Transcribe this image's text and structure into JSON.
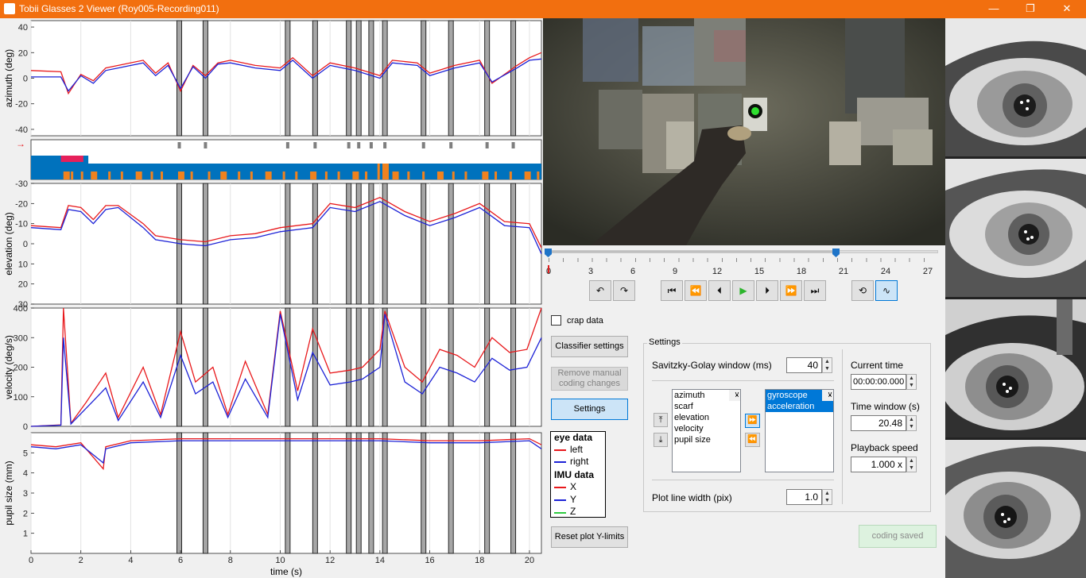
{
  "window": {
    "title": "Tobii Glasses 2 Viewer (Roy005-Recording011)",
    "minimize": "—",
    "maximize": "❐",
    "close": "✕"
  },
  "plots": {
    "azimuth_label": "azimuth (deg)",
    "elevation_label": "elevation (deg)",
    "velocity_label": "velocity (deg/s)",
    "pupil_label": "pupil size (mm)",
    "xlabel": "time (s)",
    "azimuth_ticks": [
      "40",
      "20",
      "0",
      "-20",
      "-40"
    ],
    "elevation_ticks": [
      "-30",
      "-20",
      "-10",
      "0",
      "10",
      "20",
      "30"
    ],
    "velocity_ticks": [
      "400",
      "300",
      "200",
      "100",
      "0"
    ],
    "pupil_ticks": [
      "5",
      "4",
      "3",
      "2",
      "1"
    ],
    "x_ticks": [
      "0",
      "2",
      "4",
      "6",
      "8",
      "10",
      "12",
      "14",
      "16",
      "18",
      "20"
    ],
    "event_markers_s": [
      5.95,
      7.0,
      10.3,
      11.4,
      12.75,
      13.15,
      13.65,
      14.2,
      15.75,
      16.85,
      18.3,
      19.35
    ],
    "arrow": "→"
  },
  "chart_data": [
    {
      "type": "line",
      "ylabel": "azimuth (deg)",
      "ylim": [
        -45,
        45
      ],
      "xlim": [
        0,
        20.48
      ],
      "x": [
        0,
        1.2,
        1.5,
        2.0,
        2.5,
        3.0,
        3.5,
        4.5,
        5.0,
        5.5,
        6.0,
        6.5,
        7.0,
        7.5,
        8.0,
        9.0,
        10.0,
        10.5,
        11.3,
        12.0,
        13.0,
        14.0,
        14.5,
        15.5,
        16.0,
        17.0,
        18.0,
        18.5,
        19.5,
        20.0,
        20.48
      ],
      "series": [
        {
          "name": "left",
          "color": "#e8191c",
          "values": [
            6,
            5,
            -12,
            3,
            -2,
            8,
            10,
            14,
            4,
            12,
            -10,
            10,
            2,
            12,
            14,
            10,
            8,
            16,
            2,
            12,
            8,
            2,
            14,
            12,
            4,
            10,
            14,
            -4,
            10,
            16,
            20
          ]
        },
        {
          "name": "right",
          "color": "#1d22d6",
          "values": [
            1,
            1,
            -10,
            2,
            -4,
            6,
            8,
            12,
            2,
            10,
            -8,
            9,
            0,
            11,
            12,
            8,
            6,
            14,
            0,
            10,
            6,
            0,
            12,
            10,
            2,
            8,
            12,
            -3,
            8,
            14,
            15
          ]
        }
      ]
    },
    {
      "type": "line",
      "ylabel": "elevation (deg)",
      "ylim": [
        -30,
        30
      ],
      "xlim": [
        0,
        20.48
      ],
      "x": [
        0,
        1.2,
        1.5,
        2.0,
        2.5,
        3.0,
        3.5,
        4.5,
        5.0,
        6.0,
        7.0,
        8.0,
        9.0,
        10.0,
        11.3,
        12.0,
        13.0,
        14.0,
        15.0,
        16.0,
        17.0,
        18.0,
        19.0,
        20.0,
        20.48
      ],
      "series": [
        {
          "name": "left",
          "color": "#e8191c",
          "values": [
            -9,
            -8,
            -19,
            -18,
            -12,
            -19,
            -19,
            -10,
            -4,
            -2,
            -1,
            -4,
            -5,
            -8,
            -10,
            -20,
            -18,
            -23,
            -16,
            -11,
            -15,
            -20,
            -11,
            -10,
            2
          ]
        },
        {
          "name": "right",
          "color": "#1d22d6",
          "values": [
            -8,
            -7,
            -17,
            -16,
            -10,
            -17,
            -18,
            -8,
            -2,
            0,
            1,
            -2,
            -3,
            -6,
            -8,
            -18,
            -16,
            -21,
            -14,
            -9,
            -13,
            -18,
            -9,
            -8,
            5
          ]
        }
      ]
    },
    {
      "type": "line",
      "ylabel": "velocity (deg/s)",
      "ylim": [
        0,
        400
      ],
      "xlim": [
        0,
        20.48
      ],
      "x": [
        0,
        1.2,
        1.3,
        1.6,
        2.2,
        3.0,
        3.5,
        4.5,
        5.2,
        6.0,
        6.6,
        7.3,
        7.9,
        8.6,
        9.5,
        10.0,
        10.7,
        11.3,
        12.0,
        12.8,
        13.3,
        14.0,
        14.2,
        15.0,
        15.7,
        16.4,
        17.1,
        17.8,
        18.5,
        19.2,
        19.9,
        20.48
      ],
      "series": [
        {
          "name": "left",
          "color": "#e8191c",
          "values": [
            0,
            5,
            400,
            10,
            80,
            180,
            30,
            200,
            40,
            320,
            150,
            200,
            40,
            220,
            40,
            390,
            120,
            330,
            180,
            190,
            200,
            260,
            390,
            200,
            150,
            260,
            240,
            200,
            300,
            250,
            260,
            400
          ]
        },
        {
          "name": "right",
          "color": "#1d22d6",
          "values": [
            0,
            4,
            300,
            8,
            60,
            130,
            20,
            150,
            30,
            240,
            110,
            150,
            30,
            160,
            30,
            380,
            90,
            250,
            140,
            150,
            160,
            200,
            380,
            150,
            110,
            200,
            180,
            150,
            230,
            190,
            200,
            300
          ]
        }
      ]
    },
    {
      "type": "line",
      "ylabel": "pupil size (mm)",
      "ylim": [
        0,
        6
      ],
      "xlim": [
        0,
        20.48
      ],
      "x": [
        0,
        1.0,
        2.0,
        2.9,
        3.0,
        4.0,
        6.0,
        8.0,
        10.0,
        12.0,
        14.0,
        16.0,
        18.0,
        20.0,
        20.48
      ],
      "series": [
        {
          "name": "left",
          "color": "#e8191c",
          "values": [
            5.4,
            5.3,
            5.5,
            4.2,
            5.3,
            5.6,
            5.7,
            5.7,
            5.7,
            5.7,
            5.7,
            5.6,
            5.6,
            5.7,
            5.4
          ]
        },
        {
          "name": "right",
          "color": "#1d22d6",
          "values": [
            5.3,
            5.2,
            5.4,
            4.5,
            5.2,
            5.5,
            5.6,
            5.6,
            5.6,
            5.6,
            5.6,
            5.5,
            5.5,
            5.6,
            5.2
          ]
        }
      ]
    }
  ],
  "timeline": {
    "ticks": [
      "0",
      "3",
      "6",
      "9",
      "12",
      "15",
      "18",
      "21",
      "24",
      "27"
    ],
    "start_s": 0,
    "window_end_s": 20.48,
    "max_s": 27
  },
  "controls": {
    "crap_data_label": "crap data",
    "classifier_settings": "Classifier settings",
    "remove_manual_line1": "Remove manual",
    "remove_manual_line2": "coding changes",
    "settings_button": "Settings",
    "reset_plot": "Reset plot Y-limits",
    "coding_saved": "coding saved"
  },
  "legend": {
    "eye_header": "eye data",
    "left": "left",
    "right": "right",
    "imu_header": "IMU data",
    "x": "X",
    "y": "Y",
    "z": "Z",
    "colors": {
      "red": "#e8191c",
      "blue": "#1d22d6",
      "green": "#2ecc40"
    }
  },
  "settings_panel": {
    "title": "Settings",
    "sg_label": "Savitzky-Golay window (ms)",
    "sg_value": "40",
    "available": [
      "azimuth",
      "scarf",
      "elevation",
      "velocity",
      "pupil size"
    ],
    "selected": [
      "gyroscope",
      "acceleration"
    ],
    "line_width_label": "Plot line width (pix)",
    "line_width_value": "1.0",
    "current_time_label": "Current time",
    "current_time_value": "00:00:00.000",
    "time_window_label": "Time window (s)",
    "time_window_value": "20.48",
    "playback_label": "Playback speed",
    "playback_value": "1.000 x"
  }
}
